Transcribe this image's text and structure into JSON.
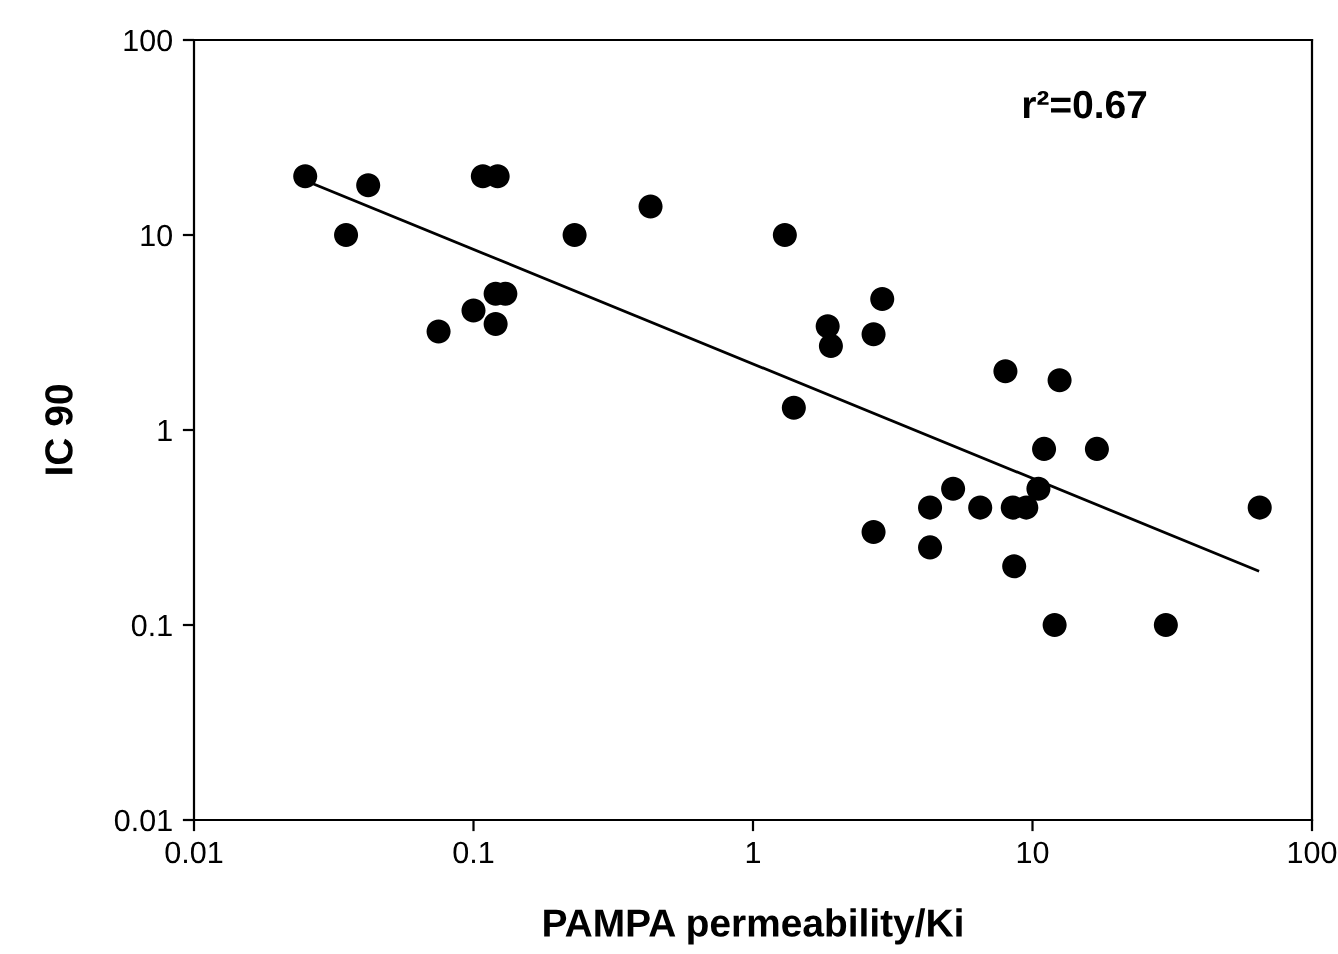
{
  "chart_data": {
    "type": "scatter",
    "xlabel": "PAMPA permeability/Ki",
    "ylabel": "IC 90",
    "log": "xy",
    "xlim": [
      0.01,
      100
    ],
    "ylim": [
      0.01,
      100
    ],
    "xticks": [
      0.01,
      0.1,
      1,
      10,
      100
    ],
    "yticks": [
      0.01,
      0.1,
      1,
      10,
      100
    ],
    "grid": false,
    "annotations": [
      "r²=0.67"
    ],
    "series": [
      {
        "marker": "circle",
        "color": "#000000",
        "x": [
          0.025,
          0.035,
          0.042,
          0.075,
          0.1,
          0.108,
          0.122,
          0.12,
          0.12,
          0.13,
          0.23,
          0.43,
          1.3,
          1.4,
          1.85,
          1.9,
          2.7,
          2.9,
          2.7,
          4.3,
          4.3,
          5.2,
          6.5,
          8,
          8.5,
          8.6,
          9.5,
          10.5,
          11,
          12,
          12.5,
          17,
          30,
          65
        ],
        "values": [
          20,
          10,
          18,
          3.2,
          4.1,
          20,
          20,
          5,
          3.5,
          5,
          10,
          14,
          10,
          1.3,
          3.4,
          2.7,
          3.1,
          4.7,
          0.3,
          0.4,
          0.25,
          0.5,
          0.4,
          2,
          0.4,
          0.2,
          0.4,
          0.5,
          0.8,
          0.1,
          1.8,
          0.8,
          0.1,
          0.4
        ]
      },
      {
        "type": "line",
        "marker": "none",
        "color": "#000000",
        "x": [
          0.026,
          64
        ],
        "values": [
          18.6,
          0.19
        ]
      }
    ]
  }
}
